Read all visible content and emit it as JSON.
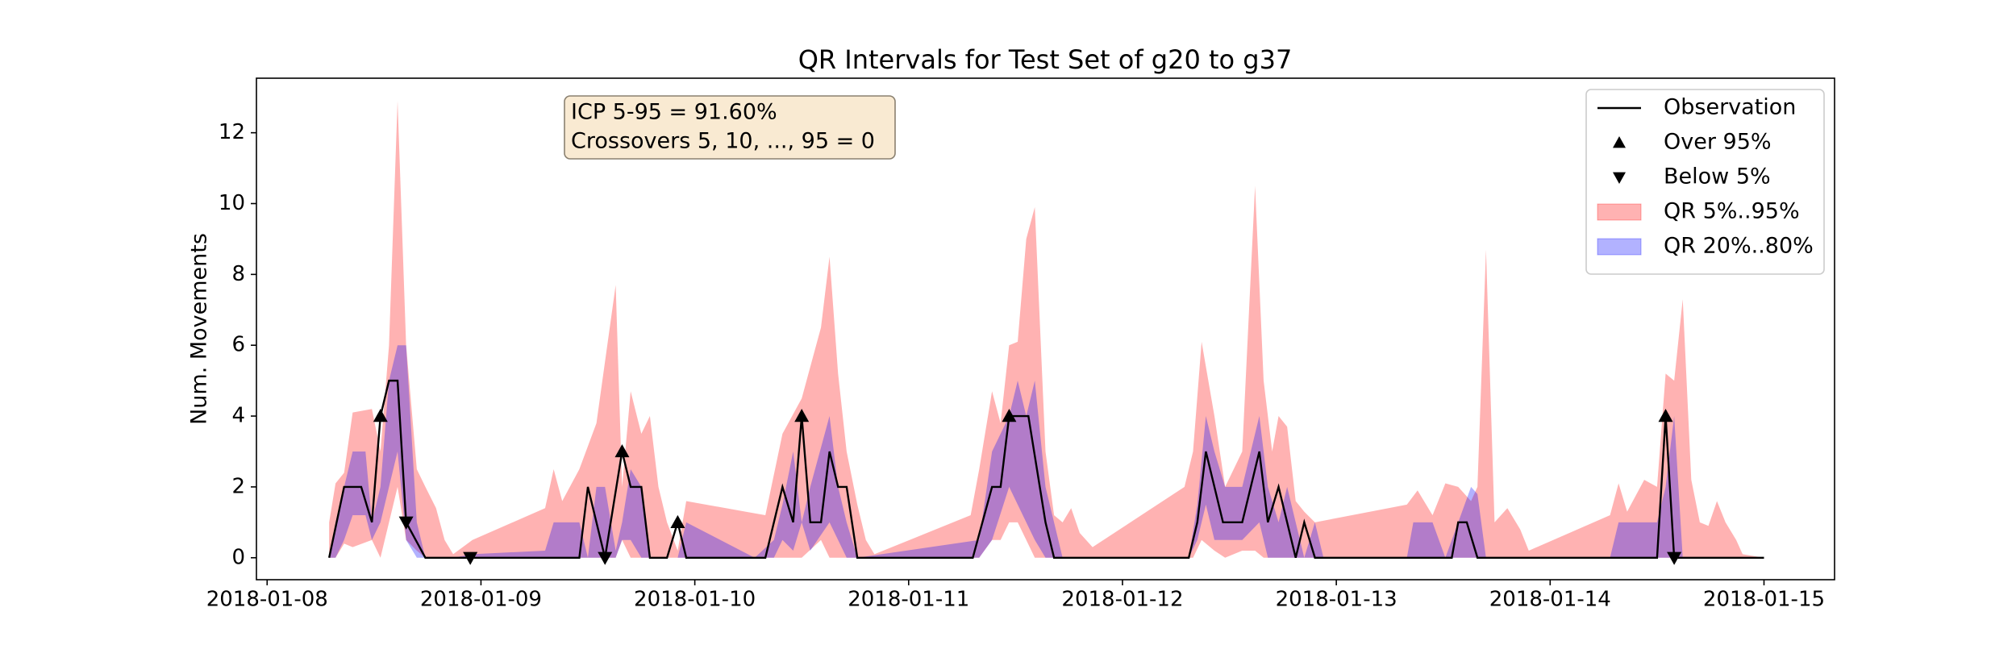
{
  "chart_data": {
    "type": "line",
    "title": "QR Intervals for Test Set of g20 to g37",
    "ylabel": "Num. Movements",
    "annotation": [
      "ICP 5-95 = 91.60%",
      "Crossovers 5, 10, ..., 95 = 0"
    ],
    "legend": "upper right",
    "xlim": [
      -0.05,
      7.33
    ],
    "ylim": [
      -0.62,
      13.54
    ],
    "xticks": [
      {
        "value": 0,
        "label": "2018-01-08"
      },
      {
        "value": 1,
        "label": "2018-01-09"
      },
      {
        "value": 2,
        "label": "2018-01-10"
      },
      {
        "value": 3,
        "label": "2018-01-11"
      },
      {
        "value": 4,
        "label": "2018-01-12"
      },
      {
        "value": 5,
        "label": "2018-01-13"
      },
      {
        "value": 6,
        "label": "2018-01-14"
      },
      {
        "value": 7,
        "label": "2018-01-15"
      }
    ],
    "yticks": [
      0,
      2,
      4,
      6,
      8,
      10,
      12
    ],
    "series": [
      {
        "name": "Observation",
        "color": "#000000",
        "marker": "line",
        "x": [
          0.29,
          0.36,
          0.44,
          0.49,
          0.53,
          0.57,
          0.61,
          0.65,
          0.74,
          1.46,
          1.5,
          1.58,
          1.66,
          1.7,
          1.75,
          1.79,
          1.87,
          1.92,
          1.96,
          2.33,
          2.41,
          2.46,
          2.5,
          2.54,
          2.59,
          2.63,
          2.67,
          2.71,
          2.76,
          3.3,
          3.39,
          3.43,
          3.47,
          3.56,
          3.64,
          3.68,
          4.31,
          4.35,
          4.39,
          4.47,
          4.56,
          4.64,
          4.68,
          4.73,
          4.81,
          4.85,
          4.9,
          5.54,
          5.57,
          5.61,
          5.66,
          6.5,
          6.54,
          6.58,
          7.0
        ],
        "values": [
          0,
          2,
          2,
          1,
          4,
          5,
          5,
          1,
          0,
          0,
          2,
          0,
          3,
          2,
          2,
          0,
          0,
          1,
          0,
          0,
          2,
          1,
          4,
          1,
          1,
          3,
          2,
          2,
          0,
          0,
          2,
          2,
          4,
          4,
          1,
          0,
          0,
          1,
          3,
          1,
          1,
          3,
          1,
          2,
          0,
          1,
          0,
          0,
          1,
          1,
          0,
          0,
          4,
          0,
          0
        ]
      },
      {
        "name": "Over 95%",
        "color": "#000000",
        "marker": "up",
        "x": [
          0.53,
          1.66,
          1.92,
          2.5,
          3.47,
          6.54
        ],
        "values": [
          4,
          3,
          1,
          4,
          4,
          4
        ]
      },
      {
        "name": "Below 5%",
        "color": "#000000",
        "marker": "down",
        "x": [
          0.65,
          0.95,
          1.58,
          6.58
        ],
        "values": [
          1,
          0,
          0,
          0
        ]
      }
    ],
    "bands": [
      {
        "name": "QR 5%..95%",
        "color": "#ff0000",
        "x": [
          0.29,
          0.32,
          0.36,
          0.4,
          0.49,
          0.53,
          0.57,
          0.61,
          0.65,
          0.7,
          0.74,
          0.79,
          0.83,
          0.87,
          0.96,
          1.3,
          1.34,
          1.38,
          1.46,
          1.54,
          1.63,
          1.66,
          1.7,
          1.75,
          1.79,
          1.83,
          1.87,
          1.92,
          1.96,
          2.33,
          2.41,
          2.5,
          2.59,
          2.63,
          2.67,
          2.71,
          2.76,
          2.8,
          2.84,
          3.29,
          3.33,
          3.39,
          3.43,
          3.47,
          3.51,
          3.55,
          3.59,
          3.64,
          3.68,
          3.72,
          3.76,
          3.8,
          3.86,
          4.29,
          4.33,
          4.37,
          4.43,
          4.48,
          4.56,
          4.62,
          4.66,
          4.7,
          4.73,
          4.77,
          4.81,
          4.85,
          4.9,
          5.33,
          5.38,
          5.45,
          5.51,
          5.57,
          5.63,
          5.66,
          5.7,
          5.74,
          5.8,
          5.86,
          5.9,
          6.28,
          6.32,
          6.36,
          6.44,
          6.5,
          6.54,
          6.58,
          6.62,
          6.66,
          6.7,
          6.74,
          6.78,
          6.82,
          6.87,
          6.9,
          7.0
        ],
        "lower": [
          0,
          0,
          0.4,
          0.3,
          0.5,
          0,
          1.0,
          2.0,
          0.5,
          0.2,
          0,
          0,
          0,
          0,
          0,
          0,
          0,
          0,
          0,
          0,
          0,
          0.5,
          0,
          0,
          0,
          0,
          0,
          0,
          0,
          0,
          0,
          0,
          0.5,
          0,
          0,
          0,
          0,
          0,
          0,
          0,
          0,
          0.5,
          0.5,
          1.0,
          1.0,
          0.5,
          0,
          0,
          0,
          0,
          0,
          0,
          0,
          0,
          0,
          0.5,
          0.2,
          0,
          0.2,
          0.2,
          0,
          0,
          0,
          0,
          0,
          0,
          0,
          0,
          0,
          0,
          0,
          0,
          0,
          0,
          0,
          0,
          0,
          0,
          0,
          0,
          0,
          0,
          0,
          0,
          0,
          0,
          0,
          0,
          0,
          0,
          0,
          0,
          0,
          0,
          0
        ],
        "upper": [
          1.0,
          2.1,
          2.4,
          4.1,
          4.2,
          3.0,
          6.0,
          12.9,
          6.0,
          2.5,
          2.0,
          1.4,
          0.5,
          0.1,
          0.5,
          1.4,
          2.5,
          1.6,
          2.5,
          3.8,
          7.7,
          2.0,
          4.7,
          3.5,
          4.0,
          2.0,
          1.0,
          0.2,
          1.6,
          1.2,
          3.5,
          4.5,
          6.5,
          8.5,
          5.2,
          3.0,
          1.5,
          0.5,
          0.1,
          1.2,
          2.5,
          4.7,
          3.8,
          6.0,
          6.1,
          9.0,
          9.9,
          3.0,
          1.2,
          1.0,
          1.4,
          0.7,
          0.3,
          2.0,
          3.0,
          6.1,
          4.0,
          2.0,
          3.0,
          10.5,
          5.0,
          3.0,
          4.0,
          3.7,
          1.6,
          1.3,
          1.0,
          1.5,
          1.9,
          1.2,
          2.1,
          2.0,
          1.6,
          2.0,
          8.7,
          1.0,
          1.4,
          0.8,
          0.2,
          1.2,
          2.1,
          1.3,
          2.2,
          2.0,
          5.2,
          5.0,
          7.3,
          2.2,
          1.0,
          0.9,
          1.6,
          1.0,
          0.5,
          0.1,
          0
        ]
      },
      {
        "name": "QR 20%..80%",
        "color": "#0000ff",
        "x": [
          0.29,
          0.32,
          0.36,
          0.4,
          0.46,
          0.49,
          0.53,
          0.57,
          0.61,
          0.65,
          0.7,
          0.74,
          0.87,
          0.96,
          1.3,
          1.34,
          1.46,
          1.5,
          1.54,
          1.58,
          1.63,
          1.66,
          1.7,
          1.75,
          1.79,
          1.92,
          1.96,
          2.28,
          2.37,
          2.41,
          2.46,
          2.5,
          2.54,
          2.63,
          2.67,
          2.71,
          2.76,
          3.33,
          3.39,
          3.47,
          3.51,
          3.55,
          3.59,
          3.64,
          3.72,
          4.31,
          4.35,
          4.39,
          4.43,
          4.48,
          4.56,
          4.64,
          4.68,
          4.73,
          4.77,
          4.81,
          4.85,
          4.9,
          4.94,
          5.33,
          5.36,
          5.45,
          5.51,
          5.63,
          5.66,
          5.7,
          6.28,
          6.32,
          6.5,
          6.54,
          6.58,
          6.62,
          6.7
        ],
        "lower": [
          0,
          0,
          0.5,
          1.2,
          1.2,
          0.5,
          1.0,
          2.0,
          3.0,
          0.5,
          0,
          0,
          0,
          0,
          0,
          0,
          0,
          0,
          0,
          0,
          0,
          0.5,
          0.5,
          0,
          0,
          0,
          0,
          0,
          0,
          0.5,
          0.2,
          1.0,
          0.2,
          1.0,
          0.5,
          0,
          0,
          0,
          0.5,
          2.0,
          1.5,
          1.0,
          0.5,
          0,
          0,
          0,
          0.5,
          1.5,
          0.5,
          0.5,
          0.5,
          1.0,
          0,
          0,
          0,
          0,
          0,
          0,
          0,
          0,
          0,
          0,
          0,
          0,
          0,
          0,
          0,
          0,
          0,
          0,
          0,
          0,
          0
        ],
        "upper": [
          0,
          1.0,
          2.0,
          3.0,
          3.0,
          1.0,
          2.0,
          5.0,
          6.0,
          6.0,
          1.0,
          0,
          0,
          0.1,
          0.2,
          1.0,
          1.0,
          0,
          2.0,
          2.0,
          0.2,
          1.0,
          2.5,
          2.0,
          0,
          0,
          1.0,
          0,
          0.5,
          1.5,
          3.0,
          1.0,
          2.0,
          4.0,
          2.0,
          1.0,
          0,
          0.5,
          3.0,
          4.0,
          5.0,
          4.0,
          5.0,
          2.0,
          0,
          0,
          1.5,
          4.0,
          3.0,
          2.0,
          2.0,
          4.0,
          2.0,
          1.0,
          2.0,
          1.0,
          0,
          1.0,
          0,
          0,
          1.0,
          1.0,
          0,
          2.0,
          1.8,
          0,
          0,
          1.0,
          1.0,
          2.0,
          4.0,
          0,
          0
        ]
      }
    ]
  }
}
